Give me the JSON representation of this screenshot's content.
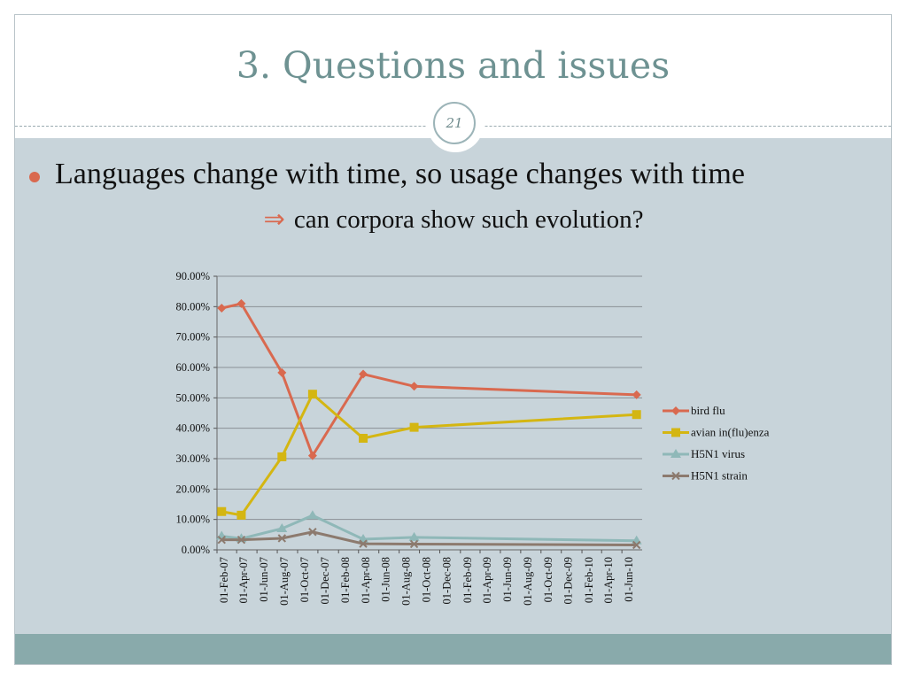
{
  "slide": {
    "title": "3. Questions and issues",
    "page_number": "21",
    "bullet": "Languages change with time, so usage changes with time",
    "sub_arrow": "⇒",
    "sub_text": "can corpora show such evolution?"
  },
  "colors": {
    "title": "#6e9292",
    "content_bg": "#c8d4da",
    "footer_bg": "#89aaab",
    "bullet": "#d9694f"
  },
  "chart_data": {
    "type": "line",
    "title": "",
    "xlabel": "",
    "ylabel": "",
    "ylim": [
      0,
      90
    ],
    "y_ticks": [
      "0.00%",
      "10.00%",
      "20.00%",
      "30.00%",
      "40.00%",
      "50.00%",
      "60.00%",
      "70.00%",
      "80.00%",
      "90.00%"
    ],
    "x_ticks": [
      "01-Feb-07",
      "01-Apr-07",
      "01-Jun-07",
      "01-Aug-07",
      "01-Oct-07",
      "01-Dec-07",
      "01-Feb-08",
      "01-Apr-08",
      "01-Jun-08",
      "01-Aug-08",
      "01-Oct-08",
      "01-Dec-08",
      "01-Feb-09",
      "01-Apr-09",
      "01-Jun-09",
      "01-Aug-09",
      "01-Oct-09",
      "01-Dec-09",
      "01-Feb-10",
      "01-Apr-10",
      "01-Jun-10"
    ],
    "x": [
      "2007-02-15",
      "2007-04-15",
      "2007-08-15",
      "2007-11-15",
      "2008-04-15",
      "2008-09-15",
      "2010-07-15"
    ],
    "grid": true,
    "legend_position": "right",
    "series": [
      {
        "name": "bird flu",
        "marker": "diamond",
        "color": "#d9694f",
        "values": [
          79.5,
          81.0,
          58.3,
          31.0,
          57.8,
          53.8,
          51.0
        ]
      },
      {
        "name": "avian in(flu)enza",
        "marker": "square",
        "color": "#d4b612",
        "values": [
          12.6,
          11.4,
          30.6,
          51.2,
          36.7,
          40.3,
          44.5
        ]
      },
      {
        "name": "H5N1 virus",
        "marker": "triangle",
        "color": "#8fb8b8",
        "values": [
          4.5,
          3.7,
          7.0,
          11.3,
          3.5,
          4.1,
          3.0
        ]
      },
      {
        "name": "H5N1 strain",
        "marker": "x",
        "color": "#8c7a6e",
        "values": [
          3.3,
          3.3,
          3.8,
          5.9,
          2.0,
          1.9,
          1.6
        ]
      }
    ]
  }
}
